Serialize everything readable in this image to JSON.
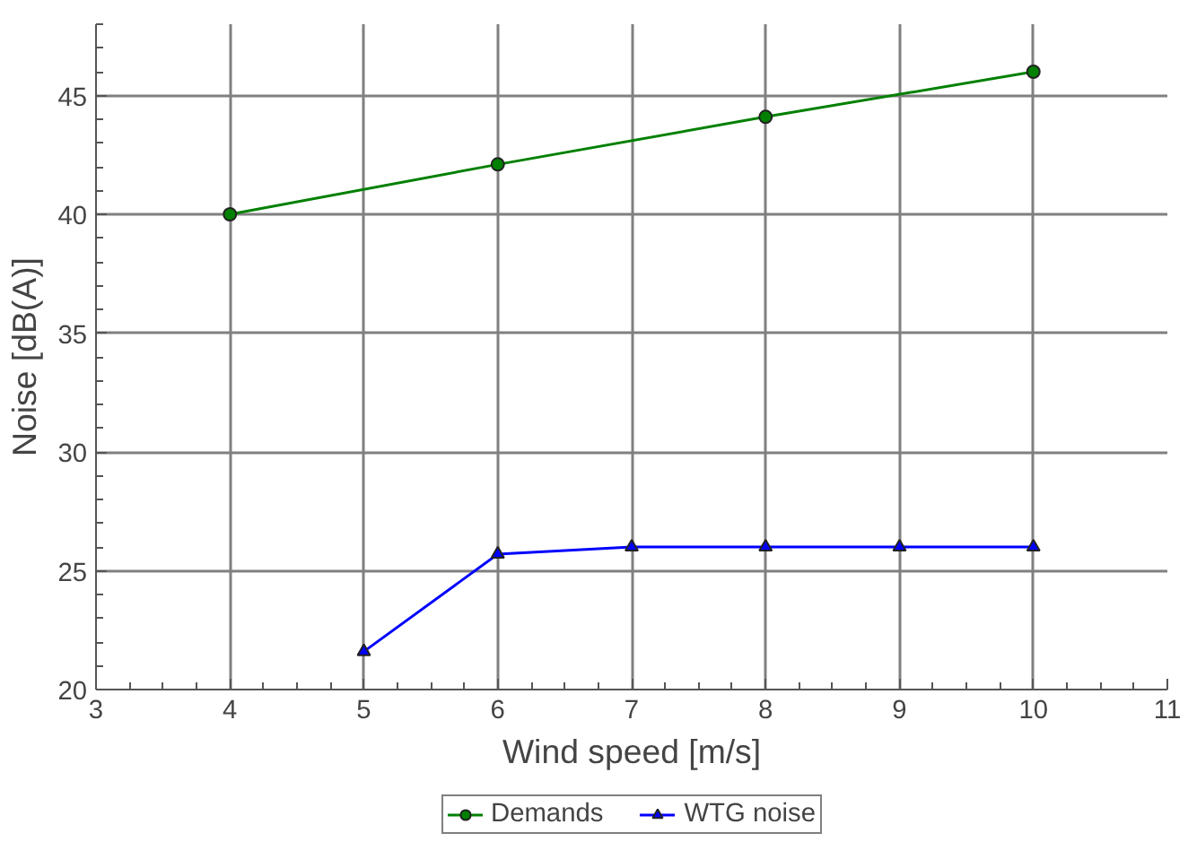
{
  "chart_data": {
    "type": "line",
    "xlabel": "Wind speed [m/s]",
    "ylabel": "Noise [dB(A)]",
    "xlim": [
      3,
      11
    ],
    "xticks": [
      3,
      4,
      5,
      6,
      7,
      8,
      9,
      10,
      11
    ],
    "ylim": [
      20,
      48
    ],
    "yticks": [
      20,
      25,
      30,
      35,
      40,
      45
    ],
    "grid": true,
    "legend": "bottom",
    "line_style": "solid",
    "series": [
      {
        "name": "Demands",
        "color": "#008000",
        "marker": "circle",
        "x": [
          4,
          6,
          8,
          10
        ],
        "values": [
          40,
          42.1,
          44.1,
          46
        ]
      },
      {
        "name": "WTG noise",
        "color": "#0000ff",
        "marker": "triangle",
        "x": [
          5,
          6,
          7,
          8,
          9,
          10
        ],
        "values": [
          21.6,
          25.7,
          26.0,
          26.0,
          26.0,
          26.0
        ]
      }
    ]
  }
}
